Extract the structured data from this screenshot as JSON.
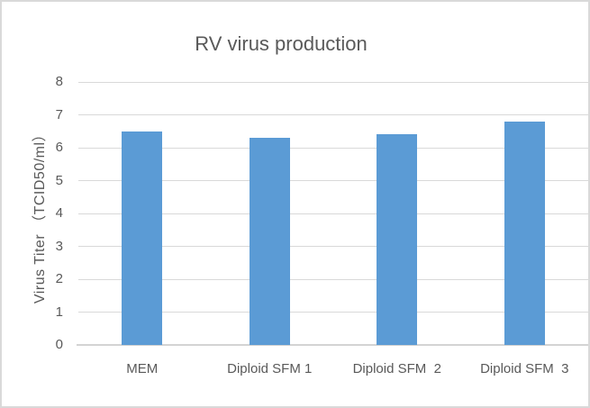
{
  "chart_data": {
    "type": "bar",
    "title": "RV virus production",
    "categories": [
      "MEM",
      "Diploid SFM 1",
      "Diploid SFM  2",
      "Diploid SFM  3"
    ],
    "values": [
      6.5,
      6.3,
      6.4,
      6.8
    ],
    "xlabel": "",
    "ylabel": "Virus Titer （TCID50/ml）",
    "ylim": [
      0,
      8
    ],
    "ytick_step": 1,
    "yticks": [
      0,
      1,
      2,
      3,
      4,
      5,
      6,
      7,
      8
    ],
    "grid": "horizontal",
    "legend": "none",
    "colors": {
      "bar": "#5b9bd5",
      "gridline": "#d9d9d9",
      "axis_line": "#d3d3d3",
      "text": "#595959",
      "chart_border": "#d9d9d9",
      "background": "#ffffff"
    }
  }
}
